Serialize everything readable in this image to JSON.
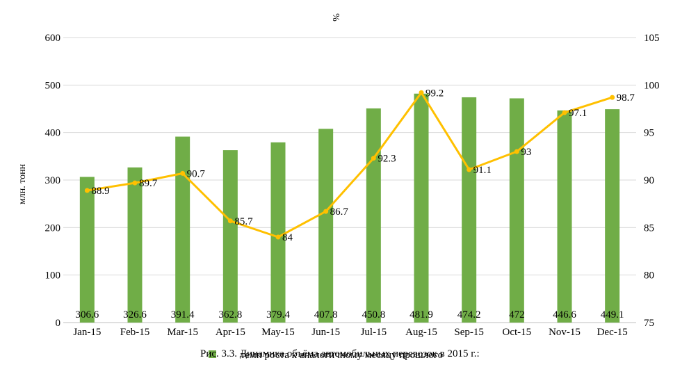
{
  "chart_data": {
    "type": "bar",
    "categories": [
      "Jan-15",
      "Feb-15",
      "Mar-15",
      "Apr-15",
      "May-15",
      "Jun-15",
      "Jul-15",
      "Aug-15",
      "Sep-15",
      "Oct-15",
      "Nov-15",
      "Dec-15"
    ],
    "series": [
      {
        "name": "",
        "type": "bar",
        "axis": "left",
        "color": "#70ad47",
        "values": [
          306.6,
          326.6,
          391.4,
          362.8,
          379.4,
          407.8,
          450.8,
          481.9,
          474.2,
          472,
          446.6,
          449.1
        ],
        "labels": [
          "306.6",
          "326.6",
          "391.4",
          "362.8",
          "379.4",
          "407.8",
          "450.8",
          "481.9",
          "474.2",
          "472",
          "446.6",
          "449.1"
        ]
      },
      {
        "name": "темп роста к аналогичному месяцу прошлого",
        "type": "line",
        "axis": "right",
        "color": "#ffc000",
        "values": [
          88.9,
          89.7,
          90.7,
          85.7,
          84,
          86.7,
          92.3,
          99.2,
          91.1,
          93,
          97.1,
          98.7
        ],
        "labels": [
          "88.9",
          "89.7",
          "90.7",
          "85.7",
          "84",
          "86.7",
          "92.3",
          "99.2",
          "91.1",
          "93",
          "97.1",
          "98.7"
        ]
      }
    ],
    "ylabel": "млн. тонн",
    "y2label": "%",
    "ylim": [
      0,
      600
    ],
    "yticks": [
      "0",
      "100",
      "200",
      "300",
      "400",
      "500",
      "600"
    ],
    "y2lim": [
      75,
      105
    ],
    "y2ticks": [
      "75",
      "80",
      "85",
      "90",
      "95",
      "100",
      "105"
    ],
    "grid": true,
    "legend": "bottom",
    "caption": "Рис. 3.3. Динамика объёма автомобильных перевозок в 2015 г.:"
  }
}
